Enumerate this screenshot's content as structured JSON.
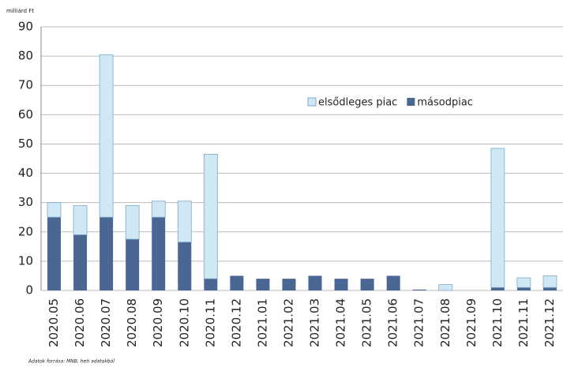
{
  "chart_data": {
    "type": "stacked_bar",
    "y_unit": "milliárd Ft",
    "source": "Adatok forrása: MNB, heti adatokból",
    "categories": [
      "2020.05",
      "2020.06",
      "2020.07",
      "2020.08",
      "2020.09",
      "2020.10",
      "2020.11",
      "2020.12",
      "2021.01",
      "2021.02",
      "2021.03",
      "2021.04",
      "2021.05",
      "2021.06",
      "2021.07",
      "2021.08",
      "2021.09",
      "2021.10",
      "2021.11",
      "2021.12"
    ],
    "series": [
      {
        "name": "másodpiac",
        "color": "#4a6794",
        "values": [
          25,
          19,
          25,
          17.5,
          25,
          16.5,
          4,
          5,
          4,
          4,
          5,
          4,
          4,
          5,
          0.3,
          0,
          0,
          1,
          1,
          1
        ]
      },
      {
        "name": "elsődleges piac",
        "color": "#cfe8f3",
        "values": [
          5,
          10,
          55.5,
          11.5,
          5.5,
          14,
          42.5,
          0,
          0,
          0,
          0,
          0,
          0,
          0,
          0,
          2,
          0,
          47.5,
          3.3,
          4
        ]
      }
    ],
    "legend_order": [
      1,
      0
    ],
    "ylim": [
      0,
      90
    ],
    "yticks": [
      0,
      10,
      20,
      30,
      40,
      50,
      60,
      70,
      80,
      90
    ],
    "grid": true
  }
}
